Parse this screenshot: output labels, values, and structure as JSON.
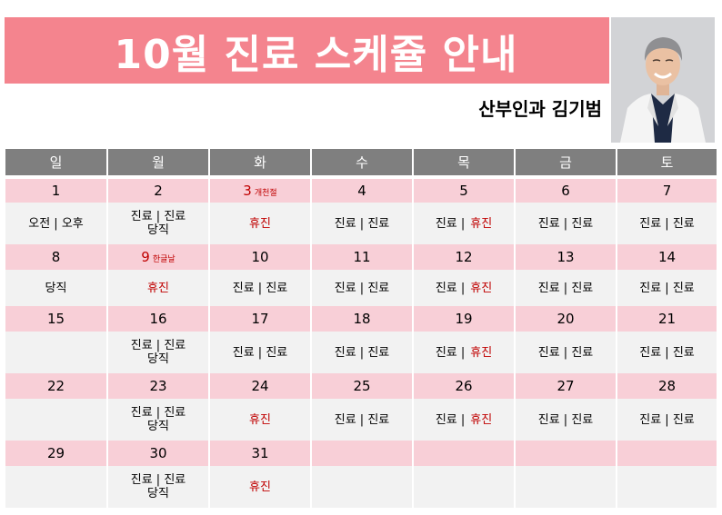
{
  "title": "10월 진료 스케쥴 안내",
  "doctor": "산부인과 김기범",
  "weekdays": [
    "일",
    "월",
    "화",
    "수",
    "목",
    "금",
    "토"
  ],
  "weeks": [
    {
      "dates": [
        {
          "num": "1",
          "note": ""
        },
        {
          "num": "2",
          "note": ""
        },
        {
          "num": "3",
          "note": "개천절",
          "holiday": true
        },
        {
          "num": "4",
          "note": ""
        },
        {
          "num": "5",
          "note": ""
        },
        {
          "num": "6",
          "note": ""
        },
        {
          "num": "7",
          "note": ""
        }
      ],
      "cells": [
        [
          "오전 | 오후"
        ],
        [
          "진료 | 진료",
          "당직"
        ],
        [
          "휴진"
        ],
        [
          "진료 | 진료"
        ],
        [
          "진료 |",
          "휴진"
        ],
        [
          "진료 | 진료"
        ],
        [
          "진료 | 진료"
        ]
      ]
    },
    {
      "dates": [
        {
          "num": "8",
          "note": ""
        },
        {
          "num": "9",
          "note": "한글날",
          "holiday": true
        },
        {
          "num": "10",
          "note": ""
        },
        {
          "num": "11",
          "note": ""
        },
        {
          "num": "12",
          "note": ""
        },
        {
          "num": "13",
          "note": ""
        },
        {
          "num": "14",
          "note": ""
        }
      ],
      "cells": [
        [
          "당직"
        ],
        [
          "휴진"
        ],
        [
          "진료 | 진료"
        ],
        [
          "진료 | 진료"
        ],
        [
          "진료 |",
          "휴진"
        ],
        [
          "진료 | 진료"
        ],
        [
          "진료 | 진료"
        ]
      ]
    },
    {
      "dates": [
        {
          "num": "15",
          "note": ""
        },
        {
          "num": "16",
          "note": ""
        },
        {
          "num": "17",
          "note": ""
        },
        {
          "num": "18",
          "note": ""
        },
        {
          "num": "19",
          "note": ""
        },
        {
          "num": "20",
          "note": ""
        },
        {
          "num": "21",
          "note": ""
        }
      ],
      "cells": [
        [
          ""
        ],
        [
          "진료 | 진료",
          "당직"
        ],
        [
          "진료 | 진료"
        ],
        [
          "진료 | 진료"
        ],
        [
          "진료 |",
          "휴진"
        ],
        [
          "진료 | 진료"
        ],
        [
          "진료 | 진료"
        ]
      ]
    },
    {
      "dates": [
        {
          "num": "22",
          "note": ""
        },
        {
          "num": "23",
          "note": ""
        },
        {
          "num": "24",
          "note": ""
        },
        {
          "num": "25",
          "note": ""
        },
        {
          "num": "26",
          "note": ""
        },
        {
          "num": "27",
          "note": ""
        },
        {
          "num": "28",
          "note": ""
        }
      ],
      "cells": [
        [
          ""
        ],
        [
          "진료 | 진료",
          "당직"
        ],
        [
          "휴진"
        ],
        [
          "진료 | 진료"
        ],
        [
          "진료 |",
          "휴진"
        ],
        [
          "진료 | 진료"
        ],
        [
          "진료 | 진료"
        ]
      ]
    },
    {
      "dates": [
        {
          "num": "29",
          "note": ""
        },
        {
          "num": "30",
          "note": ""
        },
        {
          "num": "31",
          "note": ""
        },
        {
          "num": "",
          "note": ""
        },
        {
          "num": "",
          "note": ""
        },
        {
          "num": "",
          "note": ""
        },
        {
          "num": "",
          "note": ""
        }
      ],
      "cells": [
        [
          ""
        ],
        [
          "진료 | 진료",
          "당직"
        ],
        [
          "휴진"
        ],
        [
          ""
        ],
        [
          ""
        ],
        [
          ""
        ],
        [
          ""
        ]
      ]
    }
  ],
  "colors": {
    "banner": "#f4848e",
    "header": "#7f7f7f",
    "date_row": "#f8cfd7",
    "content_row": "#f2f2f2",
    "holiday_text": "#c00000"
  }
}
